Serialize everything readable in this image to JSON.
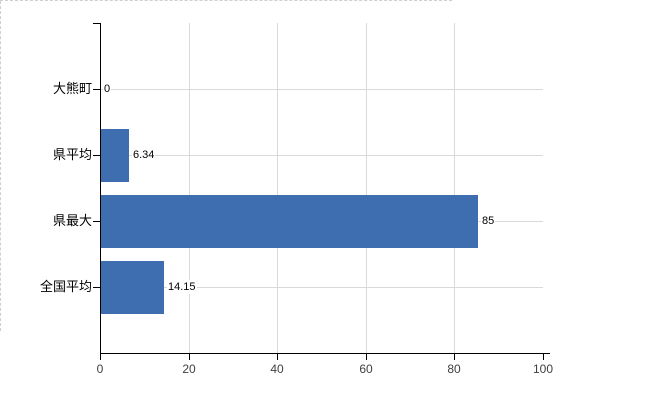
{
  "chart": {
    "title": "",
    "background": "#ffffff"
  },
  "chart_data": {
    "type": "bar",
    "orientation": "horizontal",
    "title": "",
    "xlabel": "",
    "ylabel": "",
    "categories": [
      "大熊町",
      "県平均",
      "県最大",
      "全国平均"
    ],
    "values": [
      0,
      6.34,
      85,
      14.15
    ],
    "value_labels": [
      "0",
      "6.34",
      "85",
      "14.15"
    ],
    "xlim": [
      0,
      100
    ],
    "x_tick_values": [
      0,
      20,
      40,
      60,
      80,
      100
    ],
    "x_tick_labels": [
      "0",
      "20",
      "40",
      "60",
      "80",
      "100"
    ],
    "grid": true,
    "legend": false,
    "bar_color": "#3e6db0",
    "gridline_color": "#d9d9d9",
    "dashed_border_color": "#cfcfcf",
    "axis_color": "#000000",
    "tick_label_color": "#404040",
    "category_label_color": "#000000",
    "value_label_color": "#000000"
  }
}
